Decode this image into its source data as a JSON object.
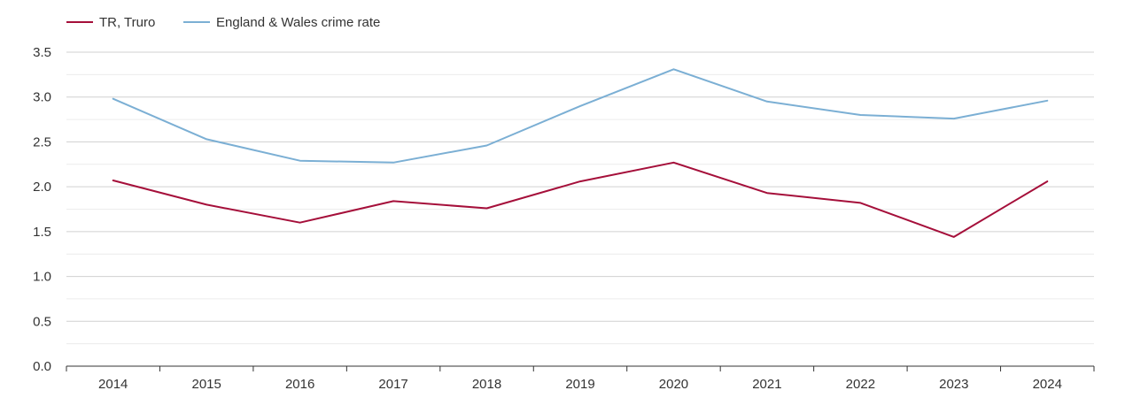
{
  "chart_data": {
    "type": "line",
    "title": "",
    "xlabel": "",
    "ylabel": "",
    "categories": [
      "2014",
      "2015",
      "2016",
      "2017",
      "2018",
      "2019",
      "2020",
      "2021",
      "2022",
      "2023",
      "2024"
    ],
    "series": [
      {
        "name": "TR, Truro",
        "color": "#a50f3a",
        "values": [
          2.07,
          1.8,
          1.6,
          1.84,
          1.76,
          2.06,
          2.27,
          1.93,
          1.82,
          1.44,
          2.06
        ]
      },
      {
        "name": "England & Wales crime rate",
        "color": "#7bafd4",
        "values": [
          2.98,
          2.53,
          2.29,
          2.27,
          2.46,
          2.9,
          3.31,
          2.95,
          2.8,
          2.76,
          2.96
        ]
      }
    ],
    "ylim": [
      0,
      3.5
    ],
    "yticks": [
      "0.0",
      "0.5",
      "1.0",
      "1.5",
      "2.0",
      "2.5",
      "3.0",
      "3.5"
    ],
    "grid": true,
    "legend_position": "top-left"
  }
}
